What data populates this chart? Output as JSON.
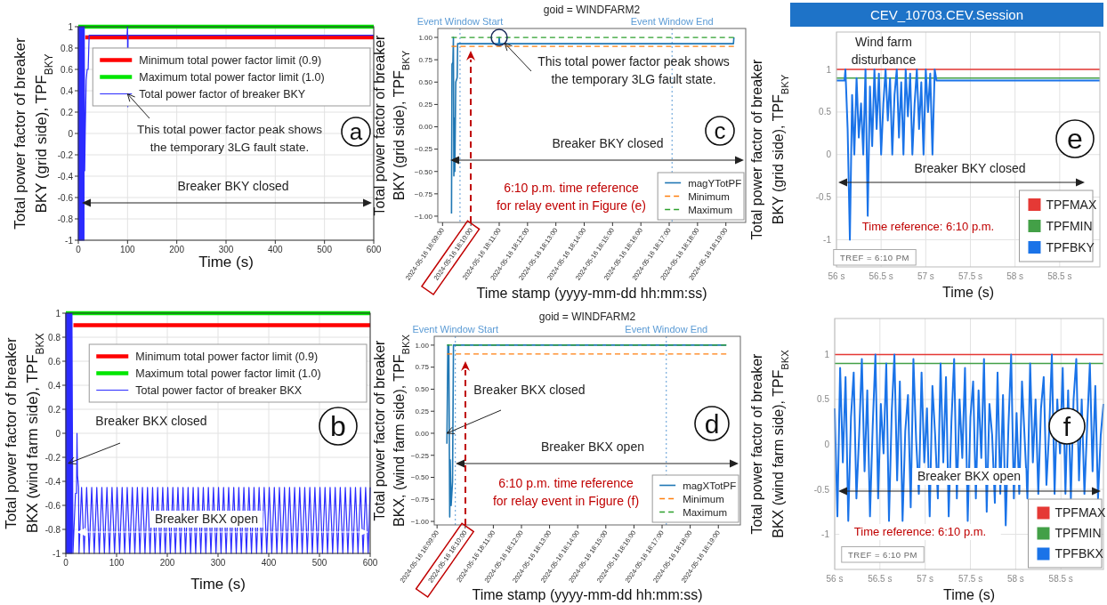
{
  "chart_data": [
    {
      "type": "line",
      "xlabel": "Time (s)",
      "ylabel": "Total power factor of breaker BKY (grid side), TPF$_{BKY}$",
      "xlim": [
        0,
        600
      ],
      "xticks": [
        0,
        100,
        200,
        300,
        400,
        500,
        600
      ],
      "ylim": [
        -1,
        1
      ],
      "yticks": [
        -1,
        -0.8,
        -0.6,
        -0.4,
        -0.2,
        0,
        0.2,
        0.4,
        0.6,
        0.8,
        1
      ],
      "grid": true,
      "legend": "top right",
      "series": [
        {
          "name": "Minimum total power factor limit (0.9)",
          "color": "#ff0000",
          "x": [
            14,
            600
          ],
          "values": [
            0.9,
            0.9
          ]
        },
        {
          "name": "Maximum total power factor limit (1.0)",
          "color": "#00e600",
          "x": [
            0,
            600
          ],
          "values": [
            1,
            1
          ]
        },
        {
          "name": "Total power factor of breaker BKY",
          "color": "#2b2bff",
          "x": [
            0,
            0.5,
            1,
            1.5,
            2,
            2.5,
            3,
            3.5,
            4,
            4.5,
            5,
            5.5,
            6,
            6.5,
            7,
            7.5,
            8,
            8.5,
            9,
            9.5,
            10,
            10.5,
            11,
            11.5,
            12,
            13,
            14,
            16,
            18,
            20,
            22,
            99,
            100,
            100.5,
            101,
            600
          ],
          "values": [
            1,
            -1,
            1,
            -1,
            1,
            -1,
            1,
            -1,
            1,
            -1,
            1,
            -1,
            1,
            -1,
            1,
            -1,
            1,
            -1,
            1,
            -1,
            1,
            -1,
            1,
            -1,
            1,
            -0.35,
            0,
            0.5,
            0.6,
            0.6,
            0.92,
            0.92,
            1,
            0.25,
            0.92,
            0.92
          ]
        }
      ],
      "annotations": [
        {
          "text": "This total power factor peak shows the temporary 3LG fault state.",
          "x": 100,
          "y": 0.37
        },
        "Breaker BKY closed",
        "a"
      ]
    },
    {
      "type": "line",
      "xlabel": "Time (s)",
      "ylabel": "Total power factor of breaker BKX (wind farm side), TPF$_{BKX}$",
      "xlim": [
        0,
        600
      ],
      "xticks": [
        0,
        100,
        200,
        300,
        400,
        500,
        600
      ],
      "ylim": [
        -1,
        1
      ],
      "yticks": [
        -1,
        -0.8,
        -0.6,
        -0.4,
        -0.2,
        0,
        0.2,
        0.4,
        0.6,
        0.8,
        1
      ],
      "grid": true,
      "legend": "top right",
      "series": [
        {
          "name": "Minimum total power factor limit (0.9)",
          "color": "#ff0000",
          "x": [
            15,
            600
          ],
          "values": [
            0.9,
            0.9
          ]
        },
        {
          "name": "Maximum total power factor limit (1.0)",
          "color": "#00e600",
          "x": [
            0,
            600
          ],
          "values": [
            1,
            1
          ]
        },
        {
          "name": "Total power factor of breaker BKX",
          "color": "#2b2bff",
          "x": [
            0,
            0.5,
            1,
            1.5,
            2,
            2.5,
            3,
            3.5,
            4,
            4.5,
            5,
            5.5,
            6,
            6.5,
            7,
            7.5,
            8,
            8.5,
            9,
            9.5,
            10,
            10.5,
            11,
            11.5,
            12,
            14,
            19,
            21,
            22,
            23,
            25,
            26,
            31,
            36,
            41,
            46,
            51,
            56,
            61,
            66,
            71,
            76,
            81,
            86,
            91,
            96,
            101,
            106,
            111,
            116,
            121,
            126,
            131,
            136,
            141,
            146,
            151,
            156,
            161,
            166,
            171,
            176,
            181,
            186,
            191,
            196,
            201,
            206,
            211,
            216,
            221,
            226,
            231,
            236,
            241,
            246,
            251,
            256,
            261,
            266,
            271,
            276,
            281,
            286,
            291,
            296,
            301,
            306,
            311,
            316,
            321,
            326,
            331,
            336,
            341,
            346,
            351,
            356,
            361,
            366,
            371,
            376,
            381,
            386,
            391,
            396,
            401,
            406,
            411,
            416,
            421,
            426,
            431,
            436,
            441,
            446,
            451,
            456,
            461,
            466,
            471,
            476,
            481,
            486,
            491,
            496,
            501,
            506,
            511,
            516,
            521,
            526,
            531,
            536,
            541,
            546,
            551,
            556,
            561,
            566,
            571,
            576,
            581,
            586,
            591,
            596,
            600
          ],
          "values": [
            1,
            -1,
            1,
            -1,
            1,
            -1,
            1,
            -1,
            1,
            -1,
            1,
            -1,
            1,
            -1,
            1,
            -1,
            1,
            -1,
            1,
            -1,
            1,
            -1,
            1,
            -1,
            1,
            -1,
            -0.5,
            -0.5,
            0,
            -0.35,
            -0.45,
            -1,
            -0.45,
            -1,
            -0.45,
            -1,
            -0.45,
            -1,
            -0.45,
            -1,
            -0.45,
            -1,
            -0.45,
            -1,
            -0.45,
            -1,
            -0.45,
            -1,
            -0.45,
            -1,
            -0.45,
            -1,
            -0.45,
            -1,
            -0.45,
            -1,
            -0.45,
            -1,
            -0.45,
            -1,
            -0.45,
            -1,
            -0.45,
            -1,
            -0.45,
            -1,
            -0.45,
            -1,
            -0.45,
            -1,
            -0.45,
            -1,
            -0.45,
            -1,
            -0.45,
            -1,
            -0.45,
            -1,
            -0.45,
            -1,
            -0.45,
            -1,
            -0.45,
            -1,
            -0.45,
            -1,
            -0.45,
            -1,
            -0.45,
            -1,
            -0.45,
            -1,
            -0.45,
            -1,
            -0.45,
            -1,
            -0.45,
            -1,
            -0.45,
            -1,
            -0.45,
            -1,
            -0.45,
            -1,
            -0.45,
            -1,
            -0.45,
            -1,
            -0.45,
            -1,
            -0.45,
            -1,
            -0.45,
            -1,
            -0.45,
            -1,
            -0.45,
            -1,
            -0.45,
            -1,
            -0.45,
            -1,
            -0.45,
            -1,
            -0.45,
            -1,
            -0.45,
            -1,
            -0.45,
            -1,
            -0.45,
            -1,
            -0.45,
            -1,
            -0.45,
            -1,
            -0.45,
            -1,
            -0.45,
            -1,
            -0.45,
            -1,
            -0.45,
            -1,
            -0.45,
            -1,
            -0.45
          ]
        }
      ],
      "annotations": [
        {
          "text": "Breaker BKX closed",
          "x": 5,
          "y": -0.25
        },
        "Breaker BKX open",
        "b"
      ]
    },
    {
      "type": "line",
      "title": "goid = WINDFARM2",
      "xlabel": "Time stamp (yyyy-mm-dd  hh:mm:ss)",
      "ylabel": "Total power factor of breaker BKY (grid side), TPF$_{BKY}$",
      "xlim": [
        "2024-05-16T18:08:50",
        "2024-05-16T18:19:42"
      ],
      "xticks": [
        {
          "value": "2024-05-16T18:09",
          "label": "2024-05-16 18:09:00"
        },
        {
          "value": "2024-05-16T18:10",
          "label": "2024-05-16 18:10:00"
        },
        {
          "value": "2024-05-16T18:11",
          "label": "2024-05-16 18:11:00"
        },
        {
          "value": "2024-05-16T18:12",
          "label": "2024-05-16 18:12:00"
        },
        {
          "value": "2024-05-16T18:13",
          "label": "2024-05-16 18:13:00"
        },
        {
          "value": "2024-05-16T18:14",
          "label": "2024-05-16 18:14:00"
        },
        {
          "value": "2024-05-16T18:15",
          "label": "2024-05-16 18:15:00"
        },
        {
          "value": "2024-05-16T18:16",
          "label": "2024-05-16 18:16:00"
        },
        {
          "value": "2024-05-16T18:17",
          "label": "2024-05-16 18:17:00"
        },
        {
          "value": "2024-05-16T18:18",
          "label": "2024-05-16 18:18:00"
        },
        {
          "value": "2024-05-16T18:19",
          "label": "2024-05-16 18:19:00"
        }
      ],
      "ylim": [
        -1.07,
        1.1
      ],
      "yticks": [
        {
          "value": -1,
          "label": "−1.00"
        },
        {
          "value": -0.75,
          "label": "−0.75"
        },
        {
          "value": -0.5,
          "label": "−0.50"
        },
        {
          "value": -0.25,
          "label": "−0.25"
        },
        {
          "value": 0,
          "label": "0.00"
        },
        {
          "value": 0.25,
          "label": "0.25"
        },
        {
          "value": 0.5,
          "label": "0.50"
        },
        {
          "value": 0.75,
          "label": "0.75"
        },
        {
          "value": 1,
          "label": "1.00"
        }
      ],
      "legend": "bottom right",
      "series": [
        {
          "name": "magYTotPF",
          "color": "#1f77b4",
          "x": [
            "2024-05-16T18:09:19",
            "2024-05-16T18:09:20",
            "2024-05-16T18:09:22",
            "2024-05-16T18:09:23",
            "2024-05-16T18:09:24",
            "2024-05-16T18:09:25",
            "2024-05-16T18:09:26",
            "2024-05-16T18:09:28",
            "2024-05-16T18:09:31",
            "2024-05-16T18:09:32",
            "2024-05-16T18:10:59",
            "2024-05-16T18:11:00",
            "2024-05-16T18:11:01",
            "2024-05-16T18:19:16",
            "2024-05-16T18:19:17"
          ],
          "values": [
            -0.97,
            0.7,
            0.72,
            1,
            -0.55,
            0.1,
            -0.5,
            0.5,
            0.55,
            0.93,
            0.93,
            1,
            0.93,
            0.93,
            1
          ]
        },
        {
          "name": "Minimum",
          "color": "#ff7f0e",
          "line_style": "dashed",
          "x": [
            "2024-05-16T18:09:19",
            "2024-05-16T18:19:17"
          ],
          "values": [
            0.9,
            0.9
          ]
        },
        {
          "name": "Maximum",
          "color": "#2ca02c",
          "line_style": "dashed",
          "x": [
            "2024-05-16T18:09:19",
            "2024-05-16T18:19:17"
          ],
          "values": [
            1,
            1
          ]
        }
      ],
      "ref_lines": [
        {
          "axis": "x",
          "value": "2024-05-16T18:09:37",
          "label": "Event Window Start",
          "color": "#5b9bd5",
          "line_style": "dotted"
        },
        {
          "axis": "x",
          "value": "2024-05-16T18:17:06",
          "label": "Event Window End",
          "color": "#5b9bd5",
          "line_style": "dotted"
        }
      ],
      "annotations": [
        {
          "text": "This total power factor peak shows the temporary 3LG fault state.",
          "x": "2024-05-16T18:11:00",
          "y": 1
        },
        "Breaker BKY closed",
        "6:10 p.m. time reference for relay event in Figure (e)",
        "c"
      ]
    },
    {
      "type": "line",
      "title": "goid = WINDFARM2",
      "xlabel": "Time stamp (yyyy-mm-dd  hh:mm:ss)",
      "ylabel": "Total power factor of breaker BKX, (wind farm side), TPF$_{BKX}$",
      "xlim": [
        "2024-05-16T18:08:54",
        "2024-05-16T18:19:47"
      ],
      "xticks": [
        {
          "value": "2024-05-16T18:09",
          "label": "2024-05-16 18:09:00"
        },
        {
          "value": "2024-05-16T18:10",
          "label": "2024-05-16 18:10:00"
        },
        {
          "value": "2024-05-16T18:11",
          "label": "2024-05-16 18:11:00"
        },
        {
          "value": "2024-05-16T18:12",
          "label": "2024-05-16 18:12:00"
        },
        {
          "value": "2024-05-16T18:13",
          "label": "2024-05-16 18:13:00"
        },
        {
          "value": "2024-05-16T18:14",
          "label": "2024-05-16 18:14:00"
        },
        {
          "value": "2024-05-16T18:15",
          "label": "2024-05-16 18:15:00"
        },
        {
          "value": "2024-05-16T18:16",
          "label": "2024-05-16 18:16:00"
        },
        {
          "value": "2024-05-16T18:17",
          "label": "2024-05-16 18:17:00"
        },
        {
          "value": "2024-05-16T18:18",
          "label": "2024-05-16 18:18:00"
        },
        {
          "value": "2024-05-16T18:19",
          "label": "2024-05-16 18:19:00"
        }
      ],
      "ylim": [
        -1.04,
        1.1
      ],
      "yticks": [
        {
          "value": -1,
          "label": "−1.00"
        },
        {
          "value": -0.75,
          "label": "−0.75"
        },
        {
          "value": -0.5,
          "label": "−0.50"
        },
        {
          "value": -0.25,
          "label": "−0.25"
        },
        {
          "value": 0,
          "label": "0.00"
        },
        {
          "value": 0.25,
          "label": "0.25"
        },
        {
          "value": 0.5,
          "label": "0.50"
        },
        {
          "value": 0.75,
          "label": "0.75"
        },
        {
          "value": 1,
          "label": "1.00"
        }
      ],
      "legend": "bottom right",
      "series": [
        {
          "name": "magXTotPF",
          "color": "#1f77b4",
          "x": [
            "2024-05-16T18:09:21",
            "2024-05-16T18:09:23",
            "2024-05-16T18:09:25",
            "2024-05-16T18:09:27",
            "2024-05-16T18:09:28",
            "2024-05-16T18:09:30",
            "2024-05-16T18:09:33",
            "2024-05-16T18:09:35",
            "2024-05-16T18:19:17"
          ],
          "values": [
            -0.12,
            1,
            1,
            -0.95,
            -0.3,
            -0.82,
            -0.55,
            1,
            1
          ]
        },
        {
          "name": "Minimum",
          "color": "#ff7f0e",
          "line_style": "dashed",
          "x": [
            "2024-05-16T18:09:21",
            "2024-05-16T18:19:17"
          ],
          "values": [
            0.9,
            0.9
          ]
        },
        {
          "name": "Maximum",
          "color": "#2ca02c",
          "line_style": "dashed",
          "x": [
            "2024-05-16T18:09:21",
            "2024-05-16T18:19:17"
          ],
          "values": [
            1,
            1
          ]
        }
      ],
      "ref_lines": [
        {
          "axis": "x",
          "value": "2024-05-16T18:09:39",
          "label": "Event Window Start",
          "color": "#5b9bd5",
          "line_style": "dotted"
        },
        {
          "axis": "x",
          "value": "2024-05-16T18:17:09",
          "label": "Event Window End",
          "color": "#5b9bd5",
          "line_style": "dotted"
        }
      ],
      "annotations": [
        {
          "text": "Breaker BKX closed",
          "x": "2024-05-16T18:09:21",
          "y": 0
        },
        "Breaker BKX open",
        "6:10 p.m. time reference for relay event in Figure (f)",
        "d"
      ]
    },
    {
      "type": "line",
      "title": "CEV_10703.CEV.Session",
      "xlabel": "Time (s)",
      "ylabel": "Total power factor of breaker BKY (grid side), TPF$_{BKY}$",
      "xlim": [
        56,
        58.95
      ],
      "xticks": [
        {
          "value": 56,
          "label": "56 s"
        },
        {
          "value": 56.5,
          "label": "56.5 s"
        },
        {
          "value": 57,
          "label": "57 s"
        },
        {
          "value": 57.5,
          "label": "57.5 s"
        },
        {
          "value": 58,
          "label": "58 s"
        },
        {
          "value": 58.5,
          "label": "58.5 s"
        }
      ],
      "ylim": [
        -1.32,
        1.44
      ],
      "yticks": [
        -1,
        -0.5,
        0,
        0.5,
        1
      ],
      "grid": true,
      "legend": "bottom right",
      "series": [
        {
          "name": "TPFMAX",
          "color": "#e53935",
          "x": [
            56,
            58.95
          ],
          "values": [
            1,
            1
          ]
        },
        {
          "name": "TPFMIN",
          "color": "#43a047",
          "x": [
            56,
            58.95
          ],
          "values": [
            0.9,
            0.9
          ]
        },
        {
          "name": "TPFBKY",
          "color": "#1a73e8",
          "x": [
            56,
            56.09,
            56.1,
            56.125,
            56.15,
            56.175,
            56.2,
            56.225,
            56.25,
            56.275,
            56.3,
            56.325,
            56.35,
            56.375,
            56.4,
            56.425,
            56.45,
            56.475,
            56.5,
            56.525,
            56.55,
            56.575,
            56.6,
            56.625,
            56.65,
            56.675,
            56.7,
            56.725,
            56.75,
            56.775,
            56.8,
            56.825,
            56.85,
            56.875,
            56.9,
            56.925,
            56.95,
            56.975,
            57,
            57.025,
            57.05,
            57.075,
            57.1,
            57.12,
            58.95
          ],
          "values": [
            0.87,
            0.87,
            1,
            0.3,
            -1,
            0.7,
            0,
            0.9,
            0.2,
            0.6,
            0,
            1,
            -0.72,
            0.8,
            0.1,
            1,
            0.3,
            0.95,
            0,
            0.6,
            1,
            0.4,
            0.9,
            0,
            0.7,
            1,
            0.2,
            0.85,
            0,
            1,
            0.45,
            0.95,
            0,
            0.6,
            1,
            0.3,
            0.85,
            0,
            1,
            0.5,
            0.95,
            0,
            1,
            0.87,
            0.87
          ]
        }
      ],
      "annotations": [
        "Wind farm disturbance",
        "Breaker BKY closed",
        "Time reference: 6:10 p.m.",
        "TREF = 6:10 PM",
        "e"
      ]
    },
    {
      "type": "line",
      "xlabel": "Time (s)",
      "ylabel": "Total power factor of breaker BKX (wind farm side), TPF$_{BKX}$",
      "xlim": [
        56,
        58.97
      ],
      "xticks": [
        {
          "value": 56,
          "label": "56 s"
        },
        {
          "value": 56.5,
          "label": "56.5 s"
        },
        {
          "value": 57,
          "label": "57 s"
        },
        {
          "value": 57.5,
          "label": "57.5 s"
        },
        {
          "value": 58,
          "label": "58 s"
        },
        {
          "value": 58.5,
          "label": "58.5 s"
        }
      ],
      "ylim": [
        -1.39,
        1.4
      ],
      "yticks": [
        -1,
        -0.5,
        0,
        0.5,
        1
      ],
      "grid": true,
      "legend": "bottom right",
      "series": [
        {
          "name": "TPFMAX",
          "color": "#e53935",
          "x": [
            56,
            58.97
          ],
          "values": [
            1,
            1
          ]
        },
        {
          "name": "TPFMIN",
          "color": "#43a047",
          "x": [
            56,
            58.97
          ],
          "values": [
            0.9,
            0.9
          ]
        },
        {
          "name": "TPFBKX",
          "color": "#1a73e8",
          "x": [
            56,
            56.03,
            56.06,
            56.09,
            56.12,
            56.15,
            56.18,
            56.21,
            56.24,
            56.27,
            56.3,
            56.33,
            56.36,
            56.39,
            56.42,
            56.45,
            56.48,
            56.51,
            56.54,
            56.57,
            56.6,
            56.63,
            56.66,
            56.69,
            56.72,
            56.75,
            56.78,
            56.81,
            56.84,
            56.87,
            56.9,
            56.93,
            56.96,
            56.99,
            57.02,
            57.05,
            57.08,
            57.11,
            57.14,
            57.17,
            57.2,
            57.23,
            57.26,
            57.29,
            57.32,
            57.35,
            57.38,
            57.41,
            57.44,
            57.47,
            57.5,
            57.53,
            57.56,
            57.59,
            57.62,
            57.65,
            57.68,
            57.71,
            57.74,
            57.77,
            57.8,
            57.83,
            57.86,
            57.89,
            57.92,
            57.95,
            57.98,
            58.01,
            58.04,
            58.07,
            58.1,
            58.13,
            58.16,
            58.19,
            58.22,
            58.25,
            58.28,
            58.31,
            58.34,
            58.37,
            58.4,
            58.43,
            58.46,
            58.49,
            58.52,
            58.55,
            58.58,
            58.61,
            58.64,
            58.67,
            58.7,
            58.73,
            58.76,
            58.79,
            58.82,
            58.85,
            58.88,
            58.91,
            58.94,
            58.97
          ],
          "values": [
            0.4,
            -0.8,
            0.85,
            -0.2,
            0.75,
            -0.85,
            0.3,
            0.8,
            -0.6,
            0.1,
            0.95,
            -0.3,
            0.6,
            -0.8,
            0.2,
            1,
            -0.6,
            0.45,
            -0.1,
            0.9,
            -0.85,
            0.35,
            1,
            -0.4,
            0.7,
            -0.85,
            0.15,
            0.55,
            -0.7,
            0.95,
            0.05,
            -0.55,
            0.8,
            -0.2,
            0.4,
            -0.8,
            0.65,
            0.1,
            -0.6,
            0.9,
            -0.2,
            0.75,
            -0.8,
            0.25,
            0.95,
            -0.6,
            0.5,
            -0.15,
            0.85,
            -0.85,
            0.3,
            0.7,
            -0.6,
            0.6,
            -0.15,
            0.95,
            -0.75,
            0.45,
            0.1,
            -0.65,
            0.8,
            -0.55,
            0.55,
            -0.9,
            0.2,
            1,
            -0.6,
            0.35,
            -0.55,
            0.7,
            0.05,
            -0.6,
            0.9,
            -0.2,
            0.5,
            -0.55,
            0.4,
            0.75,
            -0.45,
            0.15,
            1,
            -0.55,
            0.5,
            -0.1,
            0.85,
            -0.55,
            0.6,
            -0.6,
            0.5,
            0.95,
            -0.4,
            0.5,
            -0.55,
            0.2,
            0.9,
            -0.3,
            0.65,
            -0.6,
            0.1,
            0.45
          ]
        }
      ],
      "annotations": [
        "Breaker BKX open",
        "Time reference: 6:10 p.m.",
        "TREF = 6:10 PM",
        "f"
      ]
    }
  ]
}
